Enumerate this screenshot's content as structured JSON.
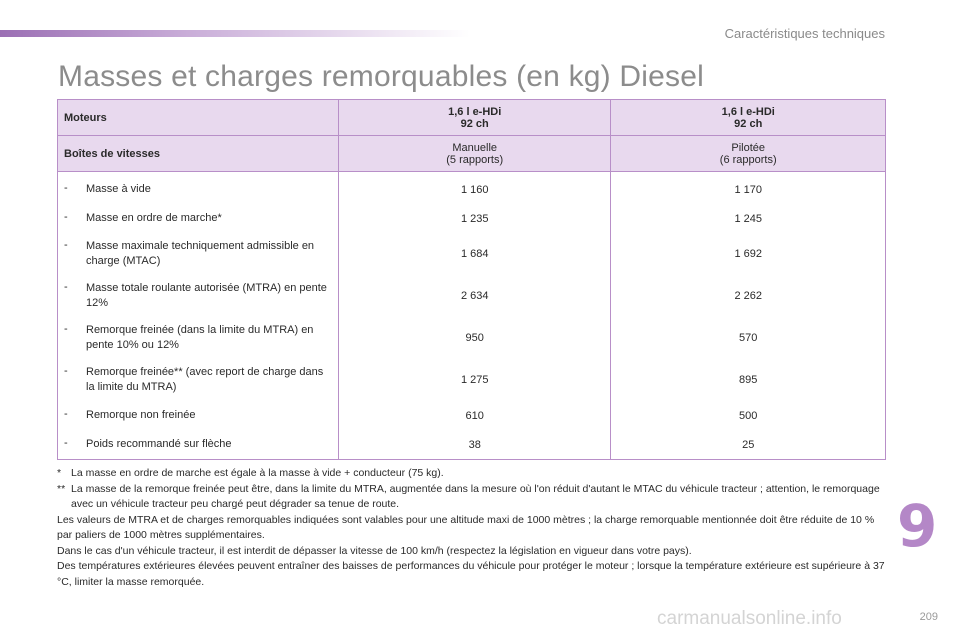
{
  "header": {
    "section_title": "Caractéristiques techniques"
  },
  "page_title": "Masses et charges remorquables (en kg) Diesel",
  "table": {
    "engines_label": "Moteurs",
    "engines": [
      {
        "name": "1,6 l e-HDi",
        "power": "92 ch"
      },
      {
        "name": "1,6 l e-HDi",
        "power": "92 ch"
      }
    ],
    "gearbox_label": "Boîtes de vitesses",
    "gearboxes": [
      {
        "type": "Manuelle",
        "detail": "(5 rapports)"
      },
      {
        "type": "Pilotée",
        "detail": "(6 rapports)"
      }
    ],
    "rows": [
      {
        "dash": "-",
        "label": "Masse à vide",
        "values": [
          "1 160",
          "1 170"
        ]
      },
      {
        "dash": "-",
        "label": "Masse en ordre de marche*",
        "values": [
          "1 235",
          "1 245"
        ]
      },
      {
        "dash": "-",
        "label": "Masse maximale techniquement admissible en charge (MTAC)",
        "values": [
          "1 684",
          "1 692"
        ]
      },
      {
        "dash": "-",
        "label": "Masse totale roulante autorisée (MTRA) en pente 12%",
        "values": [
          "2 634",
          "2 262"
        ]
      },
      {
        "dash": "-",
        "label": "Remorque freinée (dans la limite du MTRA) en pente 10% ou 12%",
        "values": [
          "950",
          "570"
        ]
      },
      {
        "dash": "-",
        "label": "Remorque freinée** (avec report de charge dans la limite du MTRA)",
        "values": [
          "1 275",
          "895"
        ]
      },
      {
        "dash": "-",
        "label": "Remorque non freinée",
        "values": [
          "610",
          "500"
        ]
      },
      {
        "dash": "-",
        "label": "Poids recommandé sur flèche",
        "values": [
          "38",
          "25"
        ]
      }
    ]
  },
  "footnotes": {
    "note1_mark": "*",
    "note1": "La masse en ordre de marche est égale à la masse à vide + conducteur (75 kg).",
    "note2_mark": "**",
    "note2": "La masse de la remorque freinée peut être, dans la limite du MTRA, augmentée dans la mesure où l'on réduit d'autant le MTAC du véhicule tracteur ; attention, le remorquage avec un véhicule tracteur peu chargé peut dégrader sa tenue de route.",
    "para1": "Les valeurs de MTRA et de charges remorquables indiquées sont valables pour une altitude maxi de 1000 mètres ; la charge remorquable mentionnée doit être réduite de 10 % par paliers de 1000 mètres supplémentaires.",
    "para2": "Dans le cas d'un véhicule tracteur, il est interdit de dépasser la vitesse de 100 km/h (respectez la législation en vigueur dans votre pays).",
    "para3": "Des températures extérieures élevées peuvent entraîner des baisses de performances du véhicule pour protéger le moteur ; lorsque la température extérieure est supérieure à 37 °C, limiter la masse remorquée."
  },
  "chapter_number": "9",
  "page_number": "209",
  "watermark": "carmanualsonline.info",
  "colors": {
    "accent": "#b487c7",
    "header_bg": "#e8d9ee",
    "table_border": "#b88fc8"
  }
}
